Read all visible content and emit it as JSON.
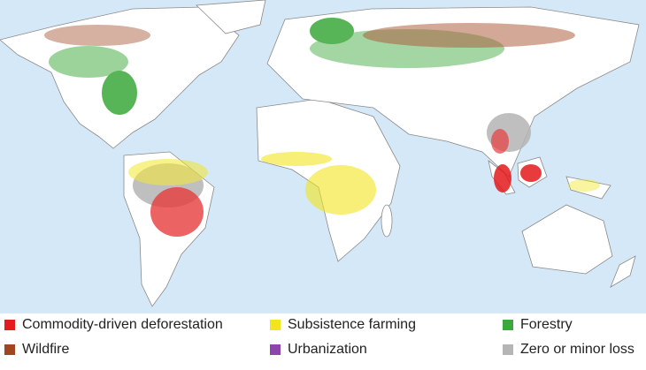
{
  "legend": [
    {
      "label": "Commodity-driven deforestation",
      "color": "#e41a1c"
    },
    {
      "label": "Subsistence farming",
      "color": "#f2e51d"
    },
    {
      "label": "Forestry",
      "color": "#3aa83a"
    },
    {
      "label": "Wildfire",
      "color": "#a0451f"
    },
    {
      "label": "Urbanization",
      "color": "#8e44ad"
    },
    {
      "label": "Zero or minor loss",
      "color": "#b5b5b5"
    }
  ]
}
